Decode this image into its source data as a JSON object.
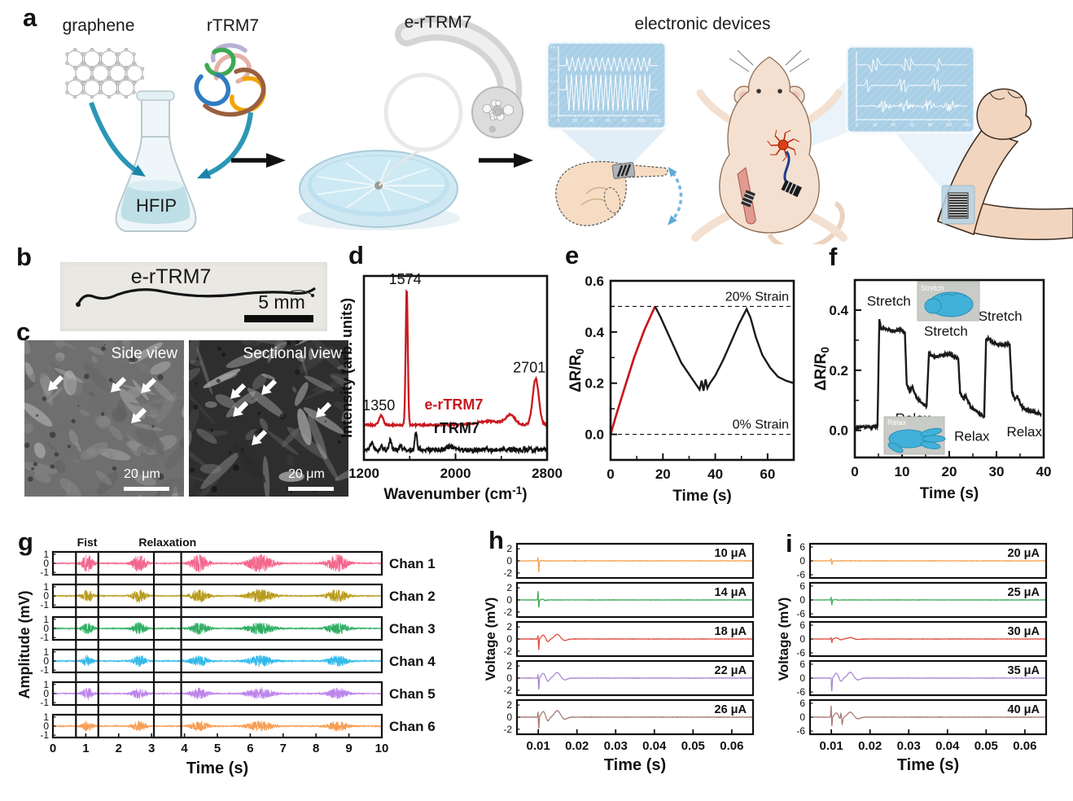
{
  "panels": {
    "a": {
      "letter": "a",
      "labels": {
        "graphene": "graphene",
        "rtrm7": "rTRM7",
        "hfip": "HFIP",
        "ertrm7": "e-rTRM7",
        "devices": "electronic devices"
      }
    },
    "b": {
      "letter": "b",
      "sample_label": "e-rTRM7",
      "scale_bar": "5 mm"
    },
    "c": {
      "letter": "c",
      "views": [
        {
          "title": "Side view",
          "scale_bar": "20 μm"
        },
        {
          "title": "Sectional view",
          "scale_bar": "20 μm"
        }
      ]
    },
    "d": {
      "letter": "d"
    },
    "e": {
      "letter": "e"
    },
    "f": {
      "letter": "f"
    },
    "g": {
      "letter": "g"
    },
    "h": {
      "letter": "h"
    },
    "i": {
      "letter": "i"
    }
  },
  "chart_data": {
    "a_inset_left": {
      "type": "line",
      "bg_color": "#a9cfe6",
      "line_color": "#ffffff",
      "x_ticks": [
        "0",
        "20",
        "40",
        "60",
        "80",
        "100",
        "120"
      ],
      "y_ticks": [
        "0.0",
        "0.1",
        "0.2",
        "0.3",
        "0.4",
        "0.5",
        "0.6"
      ],
      "traces": [
        {
          "name": "upper zigzag",
          "cycles": 14,
          "hi": 0.15,
          "lo": 0.35,
          "rest": 0.27
        },
        {
          "name": "lower zigzag",
          "cycles": 17,
          "hi": 0.4,
          "lo": 0.93,
          "rest": 0.62
        }
      ]
    },
    "a_inset_right": {
      "type": "line",
      "bg_color": "#a9cfe6",
      "line_color": "#ffffff",
      "x_ticks": [
        "0",
        "20",
        "40",
        "60",
        "80",
        "100",
        "120"
      ],
      "traces": [
        {
          "name": "spike trace 1",
          "row": 0.2,
          "clusters": [
            0.14,
            0.19,
            0.44,
            0.49,
            0.74
          ]
        },
        {
          "name": "spike trace 2",
          "row": 0.5,
          "clusters": [
            0.1,
            0.4,
            0.44,
            0.7,
            0.74
          ]
        },
        {
          "name": "noise burst trace",
          "row": 0.8,
          "bursts": [
            0.25,
            0.45,
            0.65,
            0.85
          ]
        }
      ]
    },
    "d": {
      "type": "line",
      "xlabel": "Wavenumber (cm⁻¹)",
      "ylabel": "Intensity (arb. units)",
      "xlim": [
        1200,
        2800
      ],
      "x_ticks": [
        "1200",
        "2000",
        "2800"
      ],
      "x_minor_ticks": [
        1600,
        2400
      ],
      "annotations": [
        {
          "text": "1350",
          "x": 1330,
          "v": 0.27,
          "color": "#111111"
        },
        {
          "text": "1574",
          "x": 1560,
          "v": 0.955,
          "color": "#111111"
        },
        {
          "text": "2701",
          "x": 2645,
          "v": 0.475,
          "color": "#111111"
        },
        {
          "text": "e-rTRM7",
          "x": 1985,
          "v": 0.275,
          "color": "#c8191e"
        },
        {
          "text": "rTRM7",
          "x": 2010,
          "v": 0.145,
          "color": "#111111"
        }
      ],
      "series": [
        {
          "name": "e-rTRM7",
          "color": "#c8191e",
          "baseline": 0.19,
          "noise": 0.005,
          "peaks": [
            {
              "x": 1350,
              "h": 0.05,
              "w": 26
            },
            {
              "x": 1574,
              "h": 0.74,
              "w": 13
            },
            {
              "x": 2300,
              "h": 0.02,
              "w": 170
            },
            {
              "x": 2480,
              "h": 0.05,
              "w": 55
            },
            {
              "x": 2701,
              "h": 0.25,
              "w": 38
            }
          ]
        },
        {
          "name": "rTRM7",
          "color": "#111111",
          "baseline": 0.055,
          "noise": 0.013,
          "peaks": [
            {
              "x": 1270,
              "h": 0.035,
              "w": 20
            },
            {
              "x": 1350,
              "h": 0.02,
              "w": 14
            },
            {
              "x": 1430,
              "h": 0.05,
              "w": 15
            },
            {
              "x": 1520,
              "h": 0.03,
              "w": 13
            },
            {
              "x": 1655,
              "h": 0.1,
              "w": 13
            },
            {
              "x": 1950,
              "h": 0.018,
              "w": 40
            }
          ]
        }
      ]
    },
    "e": {
      "type": "line",
      "xlabel": "Time (s)",
      "ylabel": "ΔR/R₀",
      "xlim": [
        0,
        70
      ],
      "ylim": [
        -0.1,
        0.6
      ],
      "x_ticks": [
        "0",
        "20",
        "40",
        "60"
      ],
      "x_minor_ticks": [
        10,
        30,
        50,
        70
      ],
      "y_ticks": [
        "0.0",
        "0.2",
        "0.4",
        "0.6"
      ],
      "y_minor_ticks": [
        0.1,
        0.3,
        0.5
      ],
      "dashed_lines": [
        {
          "y": 0.5,
          "label": "20% Strain"
        },
        {
          "y": 0.0,
          "label": "0% Strain"
        }
      ],
      "series": [
        {
          "name": "loading",
          "color": "#c8191e",
          "x": [
            0,
            2,
            5,
            9,
            13,
            17
          ],
          "y": [
            0,
            0.07,
            0.17,
            0.3,
            0.41,
            0.5
          ]
        },
        {
          "name": "cycling",
          "color": "#1a1a1a",
          "x": [
            17,
            19,
            23,
            27,
            31,
            34,
            34.8,
            35.5,
            36.3,
            37,
            38,
            40,
            43,
            46,
            49,
            52,
            53.5,
            55.5,
            58,
            61,
            64,
            67,
            70
          ],
          "y": [
            0.5,
            0.46,
            0.37,
            0.28,
            0.22,
            0.175,
            0.21,
            0.17,
            0.215,
            0.18,
            0.2,
            0.23,
            0.29,
            0.36,
            0.43,
            0.49,
            0.455,
            0.38,
            0.31,
            0.26,
            0.225,
            0.21,
            0.2
          ]
        }
      ]
    },
    "f": {
      "type": "line",
      "xlabel": "Time (s)",
      "ylabel": "ΔR/R₀",
      "xlim": [
        0,
        40
      ],
      "ylim": [
        -0.09,
        0.5
      ],
      "x_ticks": [
        "0",
        "10",
        "20",
        "30",
        "40"
      ],
      "x_minor_ticks": [
        5,
        15,
        25,
        35
      ],
      "y_ticks": [
        "0.0",
        "0.2",
        "0.4"
      ],
      "y_minor_ticks": [
        0.1,
        0.3
      ],
      "labels": [
        {
          "text": "Stretch",
          "t": 7.2,
          "v": 0.415
        },
        {
          "text": "Stretch",
          "t": 19.3,
          "v": 0.315
        },
        {
          "text": "Stretch",
          "t": 30.8,
          "v": 0.365
        },
        {
          "text": "Relax",
          "t": 12.3,
          "v": 0.025
        },
        {
          "text": "Relax",
          "t": 24.8,
          "v": -0.035
        },
        {
          "text": "Relax",
          "t": 35.9,
          "v": -0.02
        }
      ],
      "insets": [
        {
          "caption": "Stretch",
          "position": "top"
        },
        {
          "caption": "Relax",
          "position": "bottom"
        }
      ],
      "series": [
        {
          "name": "strain response",
          "color": "#1a1a1a",
          "x": [
            0,
            4.8,
            5.2,
            5.6,
            6.2,
            7,
            8.5,
            9.8,
            10.6,
            11.0,
            11.6,
            12.2,
            13,
            14,
            15.2,
            15.7,
            16.1,
            17,
            18.5,
            20,
            21,
            21.9,
            22.3,
            23,
            23.5,
            24.5,
            26,
            27.4,
            27.8,
            28.3,
            29.5,
            31,
            32.8,
            33.3,
            33.9,
            34.4,
            35.3,
            36.5,
            38,
            39.5
          ],
          "y": [
            0.01,
            0.012,
            0.37,
            0.335,
            0.34,
            0.335,
            0.33,
            0.335,
            0.325,
            0.155,
            0.13,
            0.145,
            0.11,
            0.095,
            0.08,
            0.26,
            0.25,
            0.245,
            0.25,
            0.255,
            0.245,
            0.24,
            0.125,
            0.105,
            0.115,
            0.08,
            0.06,
            0.047,
            0.3,
            0.305,
            0.29,
            0.285,
            0.285,
            0.125,
            0.105,
            0.115,
            0.08,
            0.065,
            0.06,
            0.055
          ]
        }
      ]
    },
    "g": {
      "type": "line",
      "xlabel": "Time (s)",
      "ylabel": "Amplitude (mV)",
      "xlim": [
        0,
        10
      ],
      "x_ticks": [
        "0",
        "1",
        "2",
        "3",
        "4",
        "5",
        "6",
        "7",
        "8",
        "9",
        "10"
      ],
      "row_y_ticks": [
        "1",
        "0",
        "-1"
      ],
      "row_ylim": [
        -1.25,
        1.25
      ],
      "event_windows": [
        {
          "label": "Fist",
          "t0": 0.7,
          "t1": 1.38
        },
        {
          "label": "Relaxation",
          "t0": 3.07,
          "t1": 3.9
        }
      ],
      "burst_centers": [
        1.05,
        2.62,
        4.45,
        6.3,
        8.65
      ],
      "burst_sigmas": [
        0.18,
        0.22,
        0.28,
        0.42,
        0.33
      ],
      "baseline_noise": 0.055,
      "channels": [
        {
          "name": "Chan 1",
          "color": "#f4668c",
          "amp": 0.95
        },
        {
          "name": "Chan 2",
          "color": "#b89b1b",
          "amp": 0.7
        },
        {
          "name": "Chan 3",
          "color": "#2eae61",
          "amp": 0.65
        },
        {
          "name": "Chan 4",
          "color": "#2fb9e9",
          "amp": 0.6
        },
        {
          "name": "Chan 5",
          "color": "#bd85ec",
          "amp": 0.6
        },
        {
          "name": "Chan 6",
          "color": "#f79c52",
          "amp": 0.55
        }
      ]
    },
    "h": {
      "type": "line",
      "xlabel": "Time (s)",
      "ylabel": "Voltage (mV)",
      "xlim": [
        0.0045,
        0.0655
      ],
      "x_ticks": [
        "0.01",
        "0.02",
        "0.03",
        "0.04",
        "0.05",
        "0.06"
      ],
      "row_y_ticks": [
        "2",
        "0",
        "-2"
      ],
      "row_ylim": 2.6,
      "stim_time": 0.01,
      "noise": 0.025,
      "traces": [
        {
          "label": "10 μA",
          "color": "#f2a14f",
          "spike_up": 0.9,
          "spike_down": -1.9,
          "osc": 0.05
        },
        {
          "label": "14 μA",
          "color": "#3ca953",
          "spike_up": 1.7,
          "spike_down": -1.5,
          "osc": 0.12
        },
        {
          "label": "18 μA",
          "color": "#dd4b3e",
          "spike_up": 0.9,
          "spike_down": -1.9,
          "osc": 0.7
        },
        {
          "label": "22 μA",
          "color": "#a982d0",
          "spike_up": 0.9,
          "spike_down": -2.0,
          "osc": 0.85
        },
        {
          "label": "26 μA",
          "color": "#a5756b",
          "spike_up": 1.2,
          "spike_down": -2.1,
          "osc": 1.0
        }
      ]
    },
    "i": {
      "type": "line",
      "xlabel": "Time (s)",
      "ylabel": "Voltage (mV)",
      "xlim": [
        0.0045,
        0.0655
      ],
      "x_ticks": [
        "0.01",
        "0.02",
        "0.03",
        "0.04",
        "0.05",
        "0.06"
      ],
      "row_y_ticks": [
        "6",
        "0",
        "-6"
      ],
      "row_ylim": 6.8,
      "stim_time": 0.01,
      "noise": 0.06,
      "traces": [
        {
          "label": "20 μA",
          "color": "#f2a14f",
          "spike_up": 1.3,
          "spike_down": -1.7,
          "osc": 0.06
        },
        {
          "label": "25 μA",
          "color": "#3ca953",
          "spike_up": 1.5,
          "spike_down": -2.3,
          "osc": 0.15
        },
        {
          "label": "30 μA",
          "color": "#dd4b3e",
          "spike_up": 0.9,
          "spike_down": -1.7,
          "osc": 0.55
        },
        {
          "label": "35 μA",
          "color": "#a982d0",
          "spike_up": 0.5,
          "spike_down": -5.6,
          "osc": 2.3
        },
        {
          "label": "40 μA",
          "color": "#a5756b",
          "spike_up": 5.7,
          "spike_down": -4.7,
          "osc": 2.0,
          "extra_spikes": [
            {
              "t": 0.0125,
              "a": 2.6
            },
            {
              "t": 0.0128,
              "a": -2.2
            }
          ]
        }
      ]
    }
  }
}
